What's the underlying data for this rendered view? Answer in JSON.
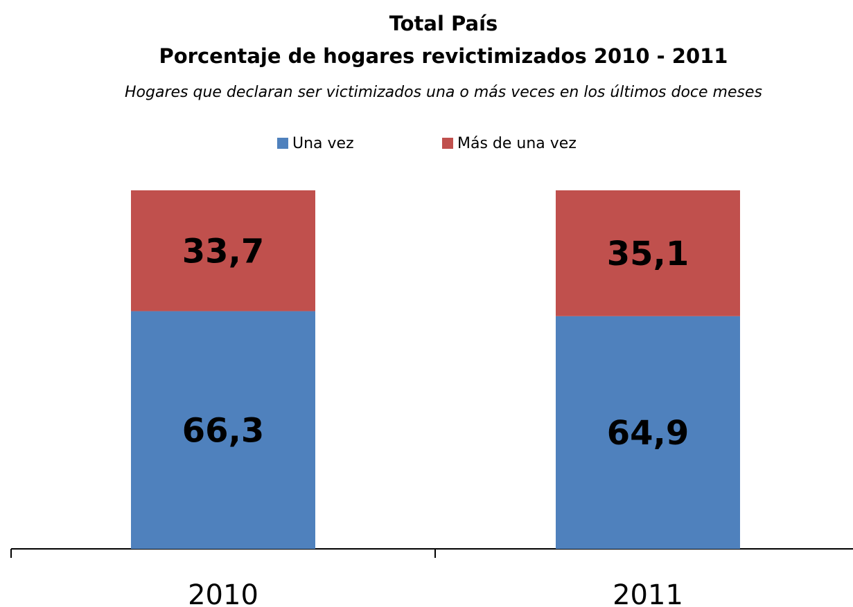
{
  "chart_data": {
    "type": "stacked_bar",
    "title": "Total País",
    "subtitle": "Porcentaje de hogares revictimizados 2010 - 2011",
    "caption": "Hogares que declaran ser victimizados una o más veces en los últimos doce meses",
    "categories": [
      "2010",
      "2011"
    ],
    "series": [
      {
        "name": "Una vez",
        "color": "#4f81bd",
        "values": [
          66.3,
          64.9
        ],
        "value_labels": [
          "66,3",
          "64,9"
        ]
      },
      {
        "name": "Más de una vez",
        "color": "#c0504d",
        "values": [
          33.7,
          35.1
        ],
        "value_labels": [
          "33,7",
          "35,1"
        ]
      }
    ],
    "legend": "top"
  }
}
